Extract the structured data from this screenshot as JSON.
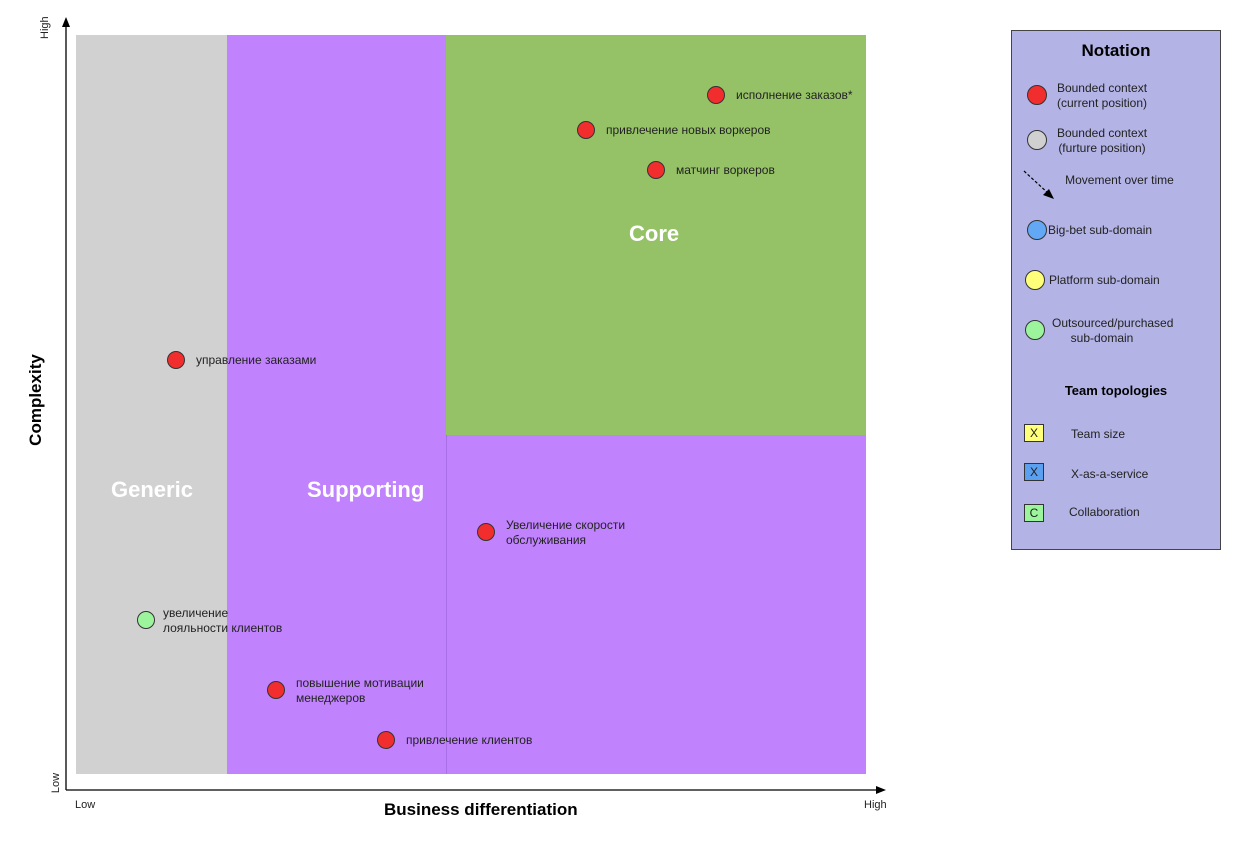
{
  "colors": {
    "generic": "#d1d1d1",
    "supporting": "#c183fd",
    "core": "#96c267",
    "context_current": "#f12d2d",
    "context_future": "#d0d0d0",
    "big_bet": "#62a8f5",
    "platform": "#ffff7a",
    "outsourced": "#9cf59c",
    "legend_bg": "#b3b3e6",
    "team_size": "#ffff7a",
    "xaas": "#5a9ff0",
    "collaboration": "#9cf59c"
  },
  "axes": {
    "x_title": "Business differentiation",
    "y_title": "Complexity",
    "x_low": "Low",
    "x_high": "High",
    "y_low": "Low",
    "y_high": "High"
  },
  "regions": {
    "generic": "Generic",
    "supporting": "Supporting",
    "core": "Core"
  },
  "contexts": [
    {
      "label": "исполнение заказов*",
      "type": "current"
    },
    {
      "label": "привлечение новых воркеров",
      "type": "current"
    },
    {
      "label": "матчинг воркеров",
      "type": "current"
    },
    {
      "label": "управление заказами",
      "type": "current"
    },
    {
      "label": "Увеличение скорости обслуживания",
      "type": "current"
    },
    {
      "label": "увеличение лояльности клиентов",
      "type": "outsourced"
    },
    {
      "label": "повышение мотивации менеджеров",
      "type": "current"
    },
    {
      "label": "привлечение клиентов",
      "type": "current"
    }
  ],
  "legend": {
    "title": "Notation",
    "bounded_current": "Bounded context (current position)",
    "bounded_future": "Bounded context (furture position)",
    "movement": "Movement over time",
    "big_bet": "Big-bet sub-domain",
    "platform": "Platform sub-domain",
    "outsourced": "Outsourced/purchased sub-domain",
    "team_title": "Team topologies",
    "team_size_symbol": "X",
    "team_size": "Team size",
    "xaas_symbol": "X",
    "xaas": "X-as-a-service",
    "collab_symbol": "C",
    "collab": "Collaboration"
  }
}
